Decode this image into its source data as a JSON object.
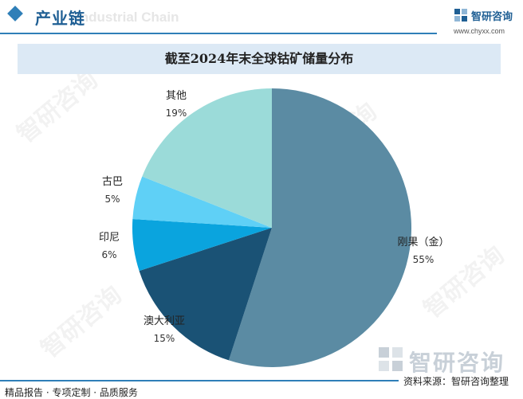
{
  "header": {
    "section_title": "产业链",
    "watermark_en": "Industrial Chain",
    "brand_name": "智研咨询",
    "brand_url": "www.chyxx.com"
  },
  "watermark_text": "智研咨询",
  "chart_data": {
    "type": "pie",
    "title": "截至2024年末全球钴矿储量分布",
    "slices": [
      {
        "label": "刚果（金）",
        "value": 55,
        "value_label": "55%",
        "color": "#5b8ba3"
      },
      {
        "label": "澳大利亚",
        "value": 15,
        "value_label": "15%",
        "color": "#1a5275"
      },
      {
        "label": "印尼",
        "value": 6,
        "value_label": "6%",
        "color": "#0aa4de"
      },
      {
        "label": "古巴",
        "value": 5,
        "value_label": "5%",
        "color": "#5fd0f6"
      },
      {
        "label": "其他",
        "value": 19,
        "value_label": "19%",
        "color": "#9bdbd9"
      }
    ]
  },
  "footer": {
    "bottom_watermark": "智研咨询",
    "source": "资料来源：智研咨询整理",
    "tagline": "精品报告 · 专项定制 · 品质服务"
  }
}
